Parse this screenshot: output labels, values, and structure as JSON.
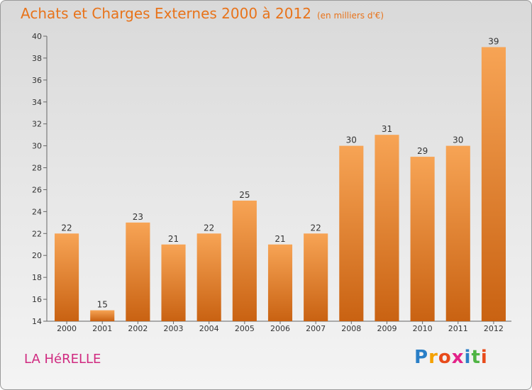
{
  "title": "Achats et Charges Externes 2000 à 2012",
  "subtitle": "(en milliers d'€)",
  "place": "LA HéRELLE",
  "logo": {
    "text": "Proxiti",
    "letters": [
      "P",
      "r",
      "o",
      "x",
      "i",
      "t",
      "i"
    ],
    "colors": [
      "#2a7fc7",
      "#f5a100",
      "#e84b1b",
      "#e32289",
      "#2a7fc7",
      "#4fb443",
      "#e84b1b"
    ]
  },
  "colors": {
    "title": "#e8731a",
    "place": "#d02a80",
    "bar_top": "#f7a455",
    "bar_bottom": "#c96212",
    "axis": "#666666"
  },
  "chart_data": {
    "type": "bar",
    "categories": [
      "2000",
      "2001",
      "2002",
      "2003",
      "2004",
      "2005",
      "2006",
      "2007",
      "2008",
      "2009",
      "2010",
      "2011",
      "2012"
    ],
    "values": [
      22,
      15,
      23,
      21,
      22,
      25,
      21,
      22,
      30,
      31,
      29,
      30,
      39
    ],
    "ylim": [
      14,
      40
    ],
    "yticks": [
      14,
      16,
      18,
      20,
      22,
      24,
      26,
      28,
      30,
      32,
      34,
      36,
      38,
      40
    ],
    "grid": false
  }
}
